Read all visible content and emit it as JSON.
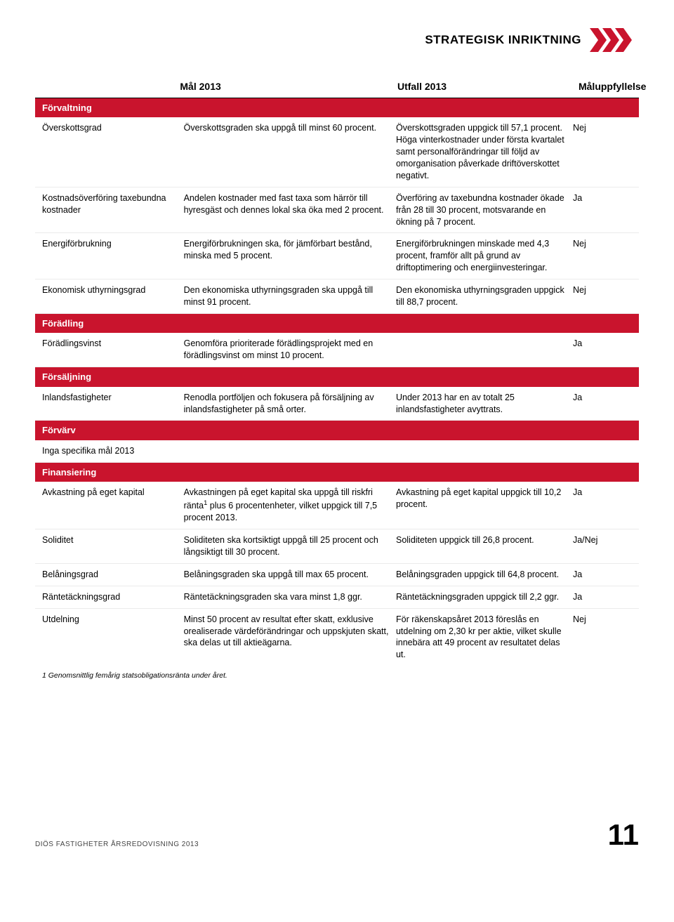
{
  "doc_title": "STRATEGISK INRIKTNING",
  "chevron": {
    "fill": "#c9142d",
    "count": 3,
    "width": 26,
    "height": 34
  },
  "columns": {
    "mal": "Mål 2013",
    "utfall": "Utfall 2013",
    "upp": "Måluppfyllelse"
  },
  "sections": [
    {
      "title": "Förvaltning",
      "rows": [
        {
          "label": "Överskottsgrad",
          "mal": "Överskottsgraden ska uppgå till minst 60 procent.",
          "utfall": "Överskottsgraden uppgick till 57,1 procent. Höga vinterkostnader under första kvartalet samt personalförändringar till följd av omorganisation påverkade driftöverskottet negativt.",
          "upp": "Nej"
        },
        {
          "label": "Kostnadsöverföring taxebundna kostnader",
          "mal": "Andelen kostnader med fast taxa som härrör till hyresgäst och dennes lokal ska öka med 2 procent.",
          "utfall": "Överföring av taxebundna kostnader ökade från 28 till 30 procent, motsvarande en ökning på 7 procent.",
          "upp": "Ja"
        },
        {
          "label": "Energiförbrukning",
          "mal": "Energiförbrukningen ska, för jämförbart bestånd, minska med 5 procent.",
          "utfall": "Energiförbrukningen minskade med 4,3 procent, framför allt på grund av driftoptimering och energiinvesteringar.",
          "upp": "Nej"
        },
        {
          "label": "Ekonomisk uthyrningsgrad",
          "mal": "Den ekonomiska uthyrningsgraden ska uppgå till minst 91 procent.",
          "utfall": "Den ekonomiska uthyrningsgraden uppgick till 88,7 procent.",
          "upp": "Nej"
        }
      ]
    },
    {
      "title": "Förädling",
      "rows": [
        {
          "label": "Förädlingsvinst",
          "mal": "Genomföra prioriterade förädlingsprojekt med en förädlingsvinst om minst 10 procent.",
          "utfall": "",
          "upp": "Ja"
        }
      ]
    },
    {
      "title": "Försäljning",
      "rows": [
        {
          "label": "Inlandsfastigheter",
          "mal": "Renodla portföljen och fokusera på försäljning av inlandsfastigheter på små orter.",
          "utfall": "Under 2013 har en av totalt 25 inlandsfastigheter avyttrats.",
          "upp": "Ja"
        }
      ]
    },
    {
      "title": "Förvärv",
      "rows": [
        {
          "label": "Inga specifika mål 2013",
          "mal": "",
          "utfall": "",
          "upp": ""
        }
      ]
    },
    {
      "title": "Finansiering",
      "rows": [
        {
          "label": "Avkastning på eget kapital",
          "mal_html": "Avkastningen på eget kapital ska uppgå till riskfri ränta<sup>1</sup> plus 6 procentenheter, vilket uppgick till 7,5 procent 2013.",
          "utfall": "Avkastning på eget kapital uppgick till 10,2 procent.",
          "upp": "Ja"
        },
        {
          "label": "Soliditet",
          "mal": "Soliditeten ska kortsiktigt uppgå till 25 procent och långsiktigt till 30 procent.",
          "utfall": "Soliditeten uppgick till 26,8 procent.",
          "upp": "Ja/Nej"
        },
        {
          "label": "Belåningsgrad",
          "mal": "Belåningsgraden ska uppgå till max 65 procent.",
          "utfall": "Belåningsgraden uppgick till 64,8 procent.",
          "upp": "Ja"
        },
        {
          "label": "Räntetäckningsgrad",
          "mal": "Räntetäckningsgraden ska vara minst 1,8 ggr.",
          "utfall": "Räntetäckningsgraden uppgick till 2,2 ggr.",
          "upp": "Ja"
        },
        {
          "label": "Utdelning",
          "mal": "Minst 50 procent av resultat efter skatt, exklusive orealiserade värdeförändringar och uppskjuten skatt, ska delas ut till aktieägarna.",
          "utfall": "För räkenskapsåret 2013 föreslås en utdelning om 2,30 kr per aktie, vilket skulle innebära att 49 procent av resultatet delas ut.",
          "upp": "Nej"
        }
      ]
    }
  ],
  "footnote": "1 Genomsnittlig femårig statsobligationsränta under året.",
  "footer_text": "DIÖS FASTIGHETER ÅRSREDOVISNING 2013",
  "page_number": "11"
}
